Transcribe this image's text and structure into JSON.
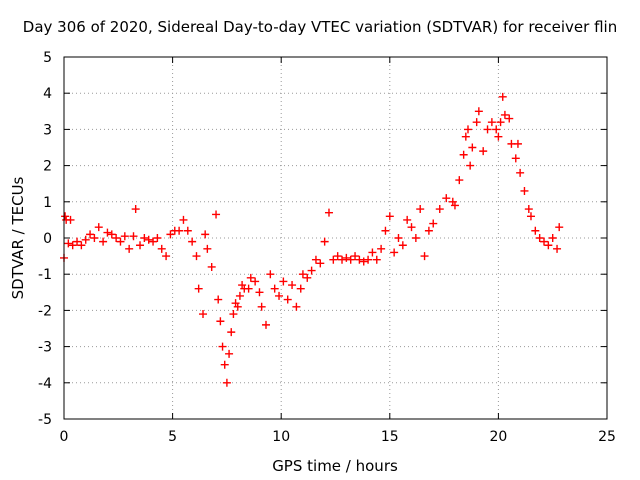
{
  "chart_data": {
    "type": "scatter",
    "title": "Day 306 of 2020, Sidereal Day-to-day VTEC variation (SDTVAR) for receiver flin",
    "xlabel": "GPS time / hours",
    "ylabel": "SDTVAR / TECUs",
    "xlim": [
      0,
      25
    ],
    "ylim": [
      -5,
      5
    ],
    "xticks": [
      0,
      5,
      10,
      15,
      20,
      25
    ],
    "yticks": [
      -5,
      -4,
      -3,
      -2,
      -1,
      0,
      1,
      2,
      3,
      4,
      5
    ],
    "grid": true,
    "marker": "+",
    "series": [
      {
        "name": "SDTVAR",
        "color": "#ff0000",
        "points": [
          [
            0.0,
            -0.55
          ],
          [
            0.05,
            0.6
          ],
          [
            0.1,
            0.5
          ],
          [
            0.2,
            -0.15
          ],
          [
            0.3,
            0.5
          ],
          [
            0.4,
            -0.2
          ],
          [
            0.6,
            -0.1
          ],
          [
            0.8,
            -0.2
          ],
          [
            1.0,
            -0.05
          ],
          [
            1.2,
            0.1
          ],
          [
            1.4,
            0.0
          ],
          [
            1.6,
            0.3
          ],
          [
            1.8,
            -0.1
          ],
          [
            2.0,
            0.15
          ],
          [
            2.2,
            0.1
          ],
          [
            2.4,
            0.0
          ],
          [
            2.6,
            -0.1
          ],
          [
            2.8,
            0.05
          ],
          [
            3.0,
            -0.3
          ],
          [
            3.2,
            0.05
          ],
          [
            3.3,
            0.8
          ],
          [
            3.5,
            -0.2
          ],
          [
            3.7,
            0.0
          ],
          [
            3.9,
            -0.05
          ],
          [
            4.1,
            -0.1
          ],
          [
            4.3,
            0.0
          ],
          [
            4.5,
            -0.3
          ],
          [
            4.7,
            -0.5
          ],
          [
            4.9,
            0.1
          ],
          [
            5.1,
            0.2
          ],
          [
            5.3,
            0.2
          ],
          [
            5.5,
            0.5
          ],
          [
            5.7,
            0.2
          ],
          [
            5.9,
            -0.1
          ],
          [
            6.1,
            -0.5
          ],
          [
            6.2,
            -1.4
          ],
          [
            6.4,
            -2.1
          ],
          [
            6.5,
            0.1
          ],
          [
            6.6,
            -0.3
          ],
          [
            6.8,
            -0.8
          ],
          [
            7.0,
            0.65
          ],
          [
            7.1,
            -1.7
          ],
          [
            7.2,
            -2.3
          ],
          [
            7.3,
            -3.0
          ],
          [
            7.4,
            -3.5
          ],
          [
            7.5,
            -4.0
          ],
          [
            7.6,
            -3.2
          ],
          [
            7.7,
            -2.6
          ],
          [
            7.8,
            -2.1
          ],
          [
            7.9,
            -1.8
          ],
          [
            8.0,
            -1.9
          ],
          [
            8.1,
            -1.6
          ],
          [
            8.2,
            -1.3
          ],
          [
            8.3,
            -1.4
          ],
          [
            8.5,
            -1.4
          ],
          [
            8.6,
            -1.1
          ],
          [
            8.8,
            -1.2
          ],
          [
            9.0,
            -1.5
          ],
          [
            9.1,
            -1.9
          ],
          [
            9.3,
            -2.4
          ],
          [
            9.5,
            -1.0
          ],
          [
            9.7,
            -1.4
          ],
          [
            9.9,
            -1.6
          ],
          [
            10.1,
            -1.2
          ],
          [
            10.3,
            -1.7
          ],
          [
            10.5,
            -1.3
          ],
          [
            10.7,
            -1.9
          ],
          [
            10.9,
            -1.4
          ],
          [
            11.0,
            -1.0
          ],
          [
            11.2,
            -1.1
          ],
          [
            11.4,
            -0.9
          ],
          [
            11.6,
            -0.6
          ],
          [
            11.8,
            -0.7
          ],
          [
            12.0,
            -0.1
          ],
          [
            12.2,
            0.7
          ],
          [
            12.4,
            -0.6
          ],
          [
            12.6,
            -0.5
          ],
          [
            12.8,
            -0.6
          ],
          [
            13.0,
            -0.55
          ],
          [
            13.2,
            -0.6
          ],
          [
            13.4,
            -0.5
          ],
          [
            13.6,
            -0.6
          ],
          [
            13.8,
            -0.65
          ],
          [
            14.0,
            -0.6
          ],
          [
            14.2,
            -0.4
          ],
          [
            14.4,
            -0.6
          ],
          [
            14.6,
            -0.3
          ],
          [
            14.8,
            0.2
          ],
          [
            15.0,
            0.6
          ],
          [
            15.2,
            -0.4
          ],
          [
            15.4,
            0.0
          ],
          [
            15.6,
            -0.2
          ],
          [
            15.8,
            0.5
          ],
          [
            16.0,
            0.3
          ],
          [
            16.2,
            0.0
          ],
          [
            16.4,
            0.8
          ],
          [
            16.6,
            -0.5
          ],
          [
            16.8,
            0.2
          ],
          [
            17.0,
            0.4
          ],
          [
            17.3,
            0.8
          ],
          [
            17.6,
            1.1
          ],
          [
            17.9,
            1.0
          ],
          [
            18.0,
            0.9
          ],
          [
            18.2,
            1.6
          ],
          [
            18.4,
            2.3
          ],
          [
            18.5,
            2.8
          ],
          [
            18.6,
            3.0
          ],
          [
            18.7,
            2.0
          ],
          [
            18.8,
            2.5
          ],
          [
            19.0,
            3.2
          ],
          [
            19.1,
            3.5
          ],
          [
            19.3,
            2.4
          ],
          [
            19.5,
            3.0
          ],
          [
            19.7,
            3.2
          ],
          [
            19.9,
            3.0
          ],
          [
            20.0,
            2.8
          ],
          [
            20.1,
            3.2
          ],
          [
            20.2,
            3.9
          ],
          [
            20.3,
            3.4
          ],
          [
            20.5,
            3.3
          ],
          [
            20.6,
            2.6
          ],
          [
            20.8,
            2.2
          ],
          [
            20.9,
            2.6
          ],
          [
            21.0,
            1.8
          ],
          [
            21.2,
            1.3
          ],
          [
            21.4,
            0.8
          ],
          [
            21.5,
            0.6
          ],
          [
            21.7,
            0.2
          ],
          [
            21.9,
            0.0
          ],
          [
            22.1,
            -0.1
          ],
          [
            22.3,
            -0.2
          ],
          [
            22.5,
            0.0
          ],
          [
            22.7,
            -0.3
          ],
          [
            22.8,
            0.3
          ]
        ]
      }
    ]
  }
}
